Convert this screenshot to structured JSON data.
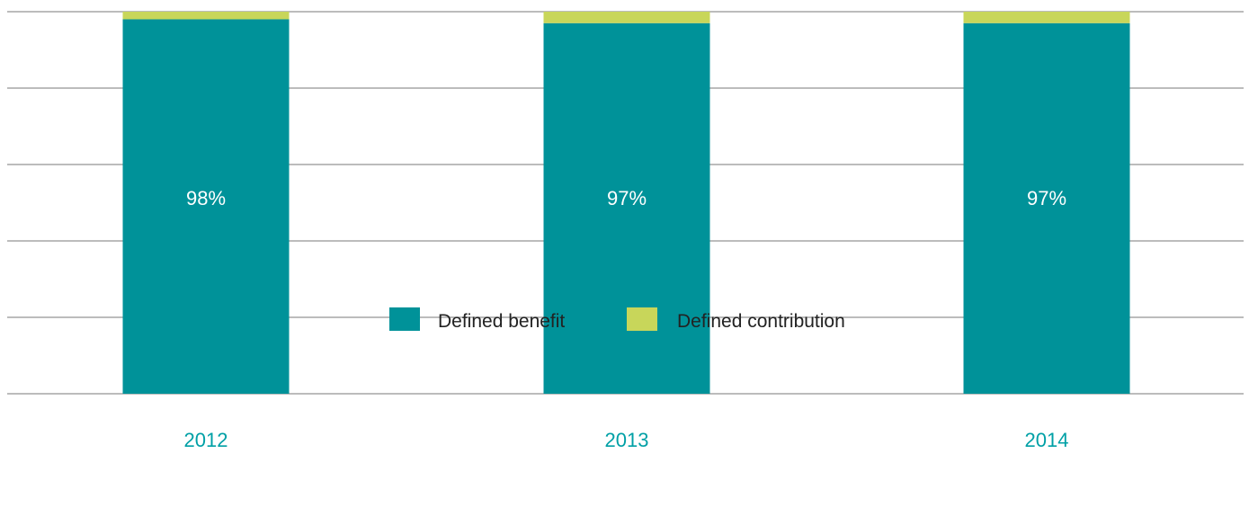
{
  "chart_data": {
    "type": "bar",
    "stacked": true,
    "categories": [
      "2012",
      "2013",
      "2014"
    ],
    "series": [
      {
        "name": "Defined benefit",
        "values": [
          98,
          97,
          97
        ],
        "labels": [
          "98%",
          "97%",
          "97%"
        ]
      },
      {
        "name": "Defined contribution",
        "values": [
          2,
          3,
          3
        ]
      }
    ],
    "ylim": [
      0,
      100
    ],
    "grid": true,
    "legend_position": "bottom-center",
    "title": "",
    "xlabel": "",
    "ylabel": ""
  },
  "colors": {
    "defined_benefit": "#009299",
    "defined_contribution": "#c8d65a",
    "grid": "#a6a6a6",
    "tick_label": "#00a0a6"
  }
}
